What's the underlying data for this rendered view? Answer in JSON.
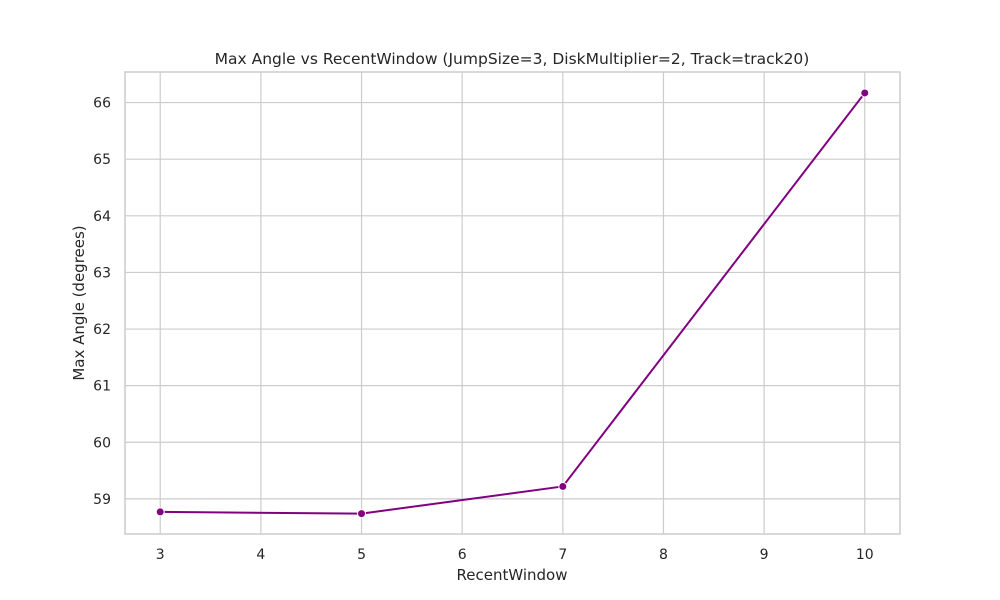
{
  "chart_data": {
    "type": "line",
    "title": "Max Angle vs RecentWindow (JumpSize=3, DiskMultiplier=2, Track=track20)",
    "xlabel": "RecentWindow",
    "ylabel": "Max Angle (degrees)",
    "x": [
      3,
      5,
      7,
      10
    ],
    "series": [
      {
        "values": [
          58.77,
          58.74,
          59.22,
          66.17
        ],
        "color": "#800080"
      }
    ],
    "xlim": [
      2.65,
      10.35
    ],
    "ylim": [
      58.38,
      66.54
    ],
    "xticks": [
      3,
      4,
      5,
      6,
      7,
      8,
      9,
      10
    ],
    "yticks": [
      59,
      60,
      61,
      62,
      63,
      64,
      65,
      66
    ],
    "grid": true,
    "marker": "circle"
  }
}
